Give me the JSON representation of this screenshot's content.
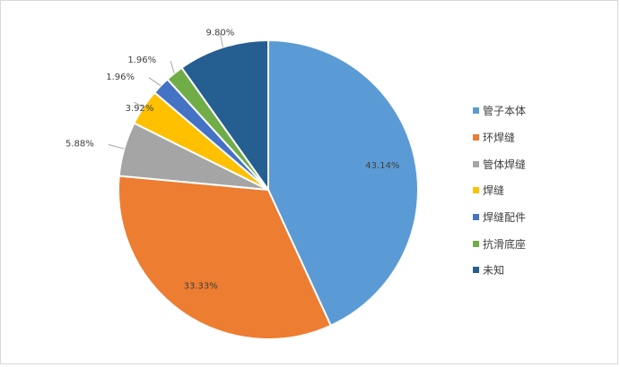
{
  "chart_data": {
    "type": "pie",
    "categories": [
      "管子本体",
      "环焊缝",
      "管体焊缝",
      "焊缝",
      "焊缝配件",
      "抗滑底座",
      "未知"
    ],
    "values": [
      43.14,
      33.33,
      5.88,
      3.92,
      1.96,
      1.96,
      9.8
    ],
    "data_labels": [
      "43.14%",
      "33.33%",
      "5.88%",
      "3.92%",
      "1.96%",
      "1.96%",
      "9.80%"
    ],
    "colors": [
      "#5b9bd5",
      "#ed7d31",
      "#a5a5a5",
      "#ffc000",
      "#4472c4",
      "#70ad47",
      "#255e91"
    ],
    "legend_position": "right",
    "start_angle_deg": 0,
    "direction": "clockwise"
  }
}
